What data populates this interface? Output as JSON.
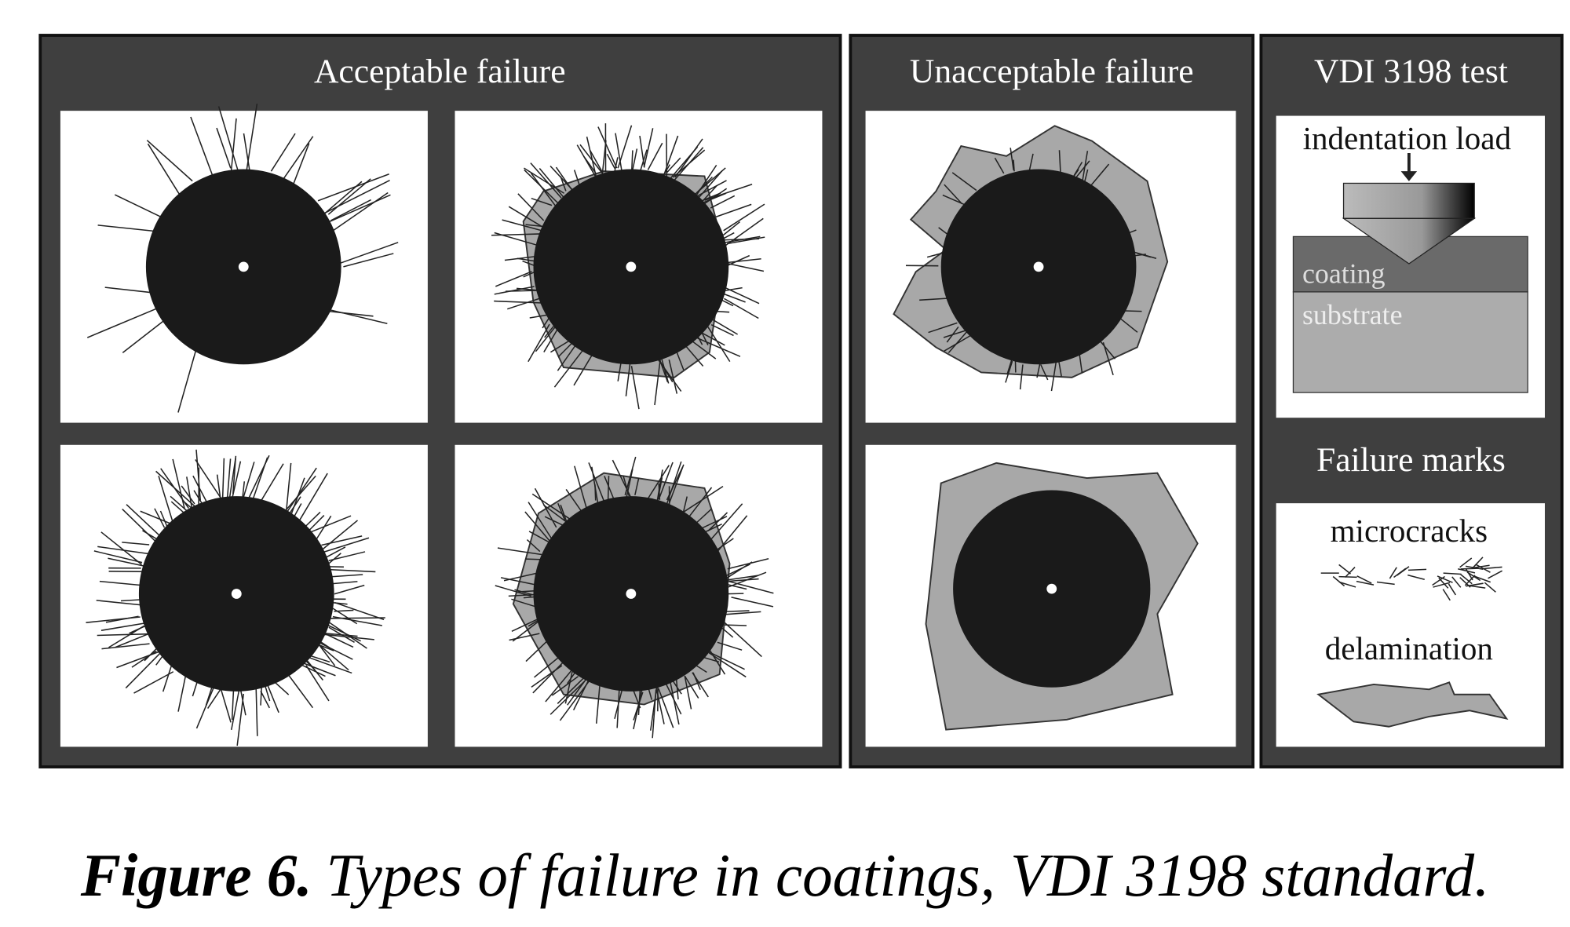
{
  "panels": [
    {
      "title": "Acceptable failure"
    },
    {
      "title": "Unacceptable failure"
    },
    {
      "title": "VDI 3198 test",
      "labels": [
        "indentation load",
        "coating",
        "substrate"
      ]
    }
  ],
  "failure_marks": {
    "title": "Failure marks",
    "items": [
      "microcracks",
      "delamination"
    ]
  },
  "caption": {
    "label": "Figure 6.",
    "text": "Types of failure in coatings, VDI 3198 standard."
  }
}
